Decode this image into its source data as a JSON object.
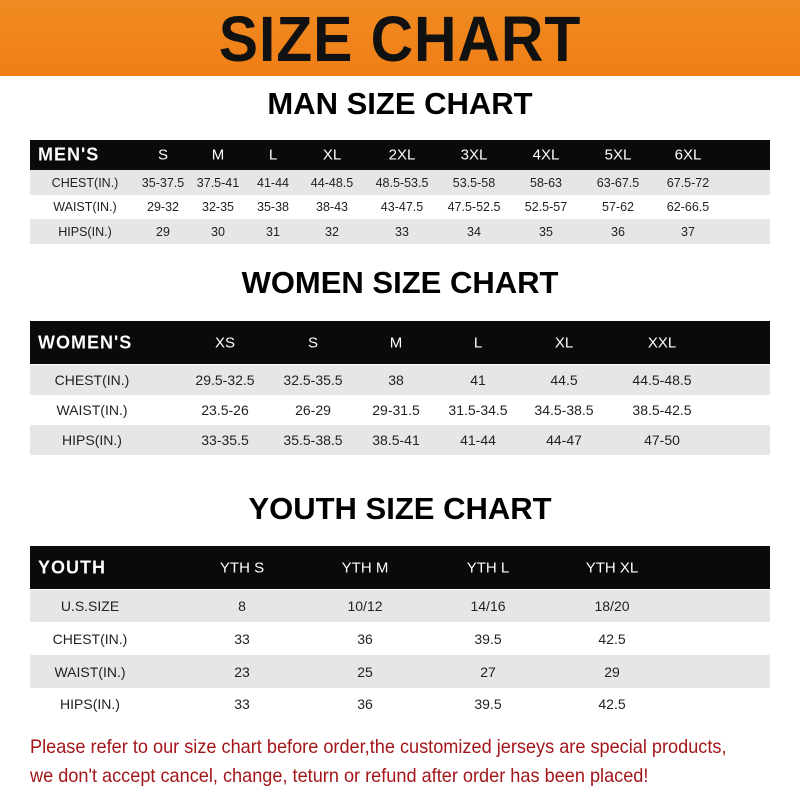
{
  "banner": {
    "title": "SIZE CHART",
    "color": "#ef8319"
  },
  "men": {
    "title": "MAN SIZE CHART",
    "header": [
      "MEN'S",
      "S",
      "M",
      "L",
      "XL",
      "2XL",
      "3XL",
      "4XL",
      "5XL",
      "6XL"
    ],
    "rows": [
      [
        "CHEST(IN.)",
        "35-37.5",
        "37.5-41",
        "41-44",
        "44-48.5",
        "48.5-53.5",
        "53.5-58",
        "58-63",
        "63-67.5",
        "67.5-72"
      ],
      [
        "WAIST(IN.)",
        "29-32",
        "32-35",
        "35-38",
        "38-43",
        "43-47.5",
        "47.5-52.5",
        "52.5-57",
        "57-62",
        "62-66.5"
      ],
      [
        "HIPS(IN.)",
        "29",
        "30",
        "31",
        "32",
        "33",
        "34",
        "35",
        "36",
        "37"
      ]
    ]
  },
  "women": {
    "title": "WOMEN SIZE CHART",
    "header": [
      "WOMEN'S",
      "XS",
      "S",
      "M",
      "L",
      "XL",
      "XXL"
    ],
    "rows": [
      [
        "CHEST(IN.)",
        "29.5-32.5",
        "32.5-35.5",
        "38",
        "41",
        "44.5",
        "44.5-48.5"
      ],
      [
        "WAIST(IN.)",
        "23.5-26",
        "26-29",
        "29-31.5",
        "31.5-34.5",
        "34.5-38.5",
        "38.5-42.5"
      ],
      [
        "HIPS(IN.)",
        "33-35.5",
        "35.5-38.5",
        "38.5-41",
        "41-44",
        "44-47",
        "47-50"
      ]
    ]
  },
  "youth": {
    "title": "YOUTH SIZE CHART",
    "header": [
      "YOUTH",
      "YTH S",
      "YTH M",
      "YTH L",
      "YTH XL"
    ],
    "rows": [
      [
        "U.S.SIZE",
        "8",
        "10/12",
        "14/16",
        "18/20"
      ],
      [
        "CHEST(IN.)",
        "33",
        "36",
        "39.5",
        "42.5"
      ],
      [
        "WAIST(IN.)",
        "23",
        "25",
        "27",
        "29"
      ],
      [
        "HIPS(IN.)",
        "33",
        "36",
        "39.5",
        "42.5"
      ]
    ]
  },
  "note": {
    "line1": "Please refer to our size chart before order,the customized jerseys are special products,",
    "line2": "we don't accept cancel, change, teturn or refund after order has been placed!",
    "color": "#a3161a"
  }
}
